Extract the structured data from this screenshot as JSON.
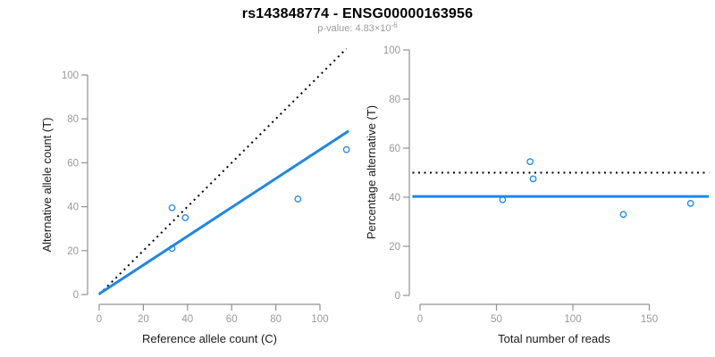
{
  "header": {
    "title": "rs143848774 - ENSG00000163956",
    "subtitle_prefix": "p-value: 4.83×10",
    "subtitle_exponent": "-6"
  },
  "colors": {
    "accent_blue": "#1e87e8",
    "dotted_line_black": "#000000",
    "axis_line_gray": "#919191",
    "tick_label_gray": "#999999",
    "axis_title_color": "#1a1a1a"
  },
  "chart_data": [
    {
      "type": "scatter",
      "name": "ref-vs-alt-counts",
      "xlabel": "Reference allele count (C)",
      "ylabel": "Alternative allele count (T)",
      "xlim": [
        0,
        113
      ],
      "ylim": [
        0,
        112
      ],
      "xticks": [
        0,
        20,
        40,
        60,
        80,
        100
      ],
      "yticks": [
        0,
        20,
        40,
        60,
        80,
        100
      ],
      "grid": false,
      "points": [
        {
          "x": 33,
          "y": 39.5
        },
        {
          "x": 39,
          "y": 35
        },
        {
          "x": 33,
          "y": 21
        },
        {
          "x": 90,
          "y": 43.5
        },
        {
          "x": 112,
          "y": 66
        }
      ],
      "lines": [
        {
          "name": "identity-line",
          "style": "dotted",
          "color": "#000000",
          "x1": 0,
          "y1": 0,
          "x2": 112,
          "y2": 112
        },
        {
          "name": "regression-line",
          "style": "solid",
          "color": "#1e87e8",
          "x1": 0,
          "y1": 0.3,
          "x2": 113,
          "y2": 74.5
        }
      ]
    },
    {
      "type": "scatter",
      "name": "pct-alt-vs-total-reads",
      "xlabel": "Total number of reads",
      "ylabel": "Percentage alternative (T)",
      "xlim": [
        -5,
        189
      ],
      "ylim": [
        0,
        100
      ],
      "xticks": [
        0,
        50,
        100,
        150
      ],
      "yticks": [
        0,
        20,
        40,
        60,
        80,
        100
      ],
      "grid": false,
      "points": [
        {
          "x": 54,
          "y": 39
        },
        {
          "x": 72,
          "y": 54.5
        },
        {
          "x": 74,
          "y": 47.5
        },
        {
          "x": 133,
          "y": 33
        },
        {
          "x": 177,
          "y": 37.5
        }
      ],
      "lines": [
        {
          "name": "null-expectation-line",
          "style": "dotted",
          "color": "#000000",
          "x1": -5,
          "y1": 50,
          "x2": 189,
          "y2": 50
        },
        {
          "name": "mean-fraction-line",
          "style": "solid",
          "color": "#1e87e8",
          "x1": -5,
          "y1": 40.3,
          "x2": 189,
          "y2": 40.3
        }
      ]
    }
  ]
}
